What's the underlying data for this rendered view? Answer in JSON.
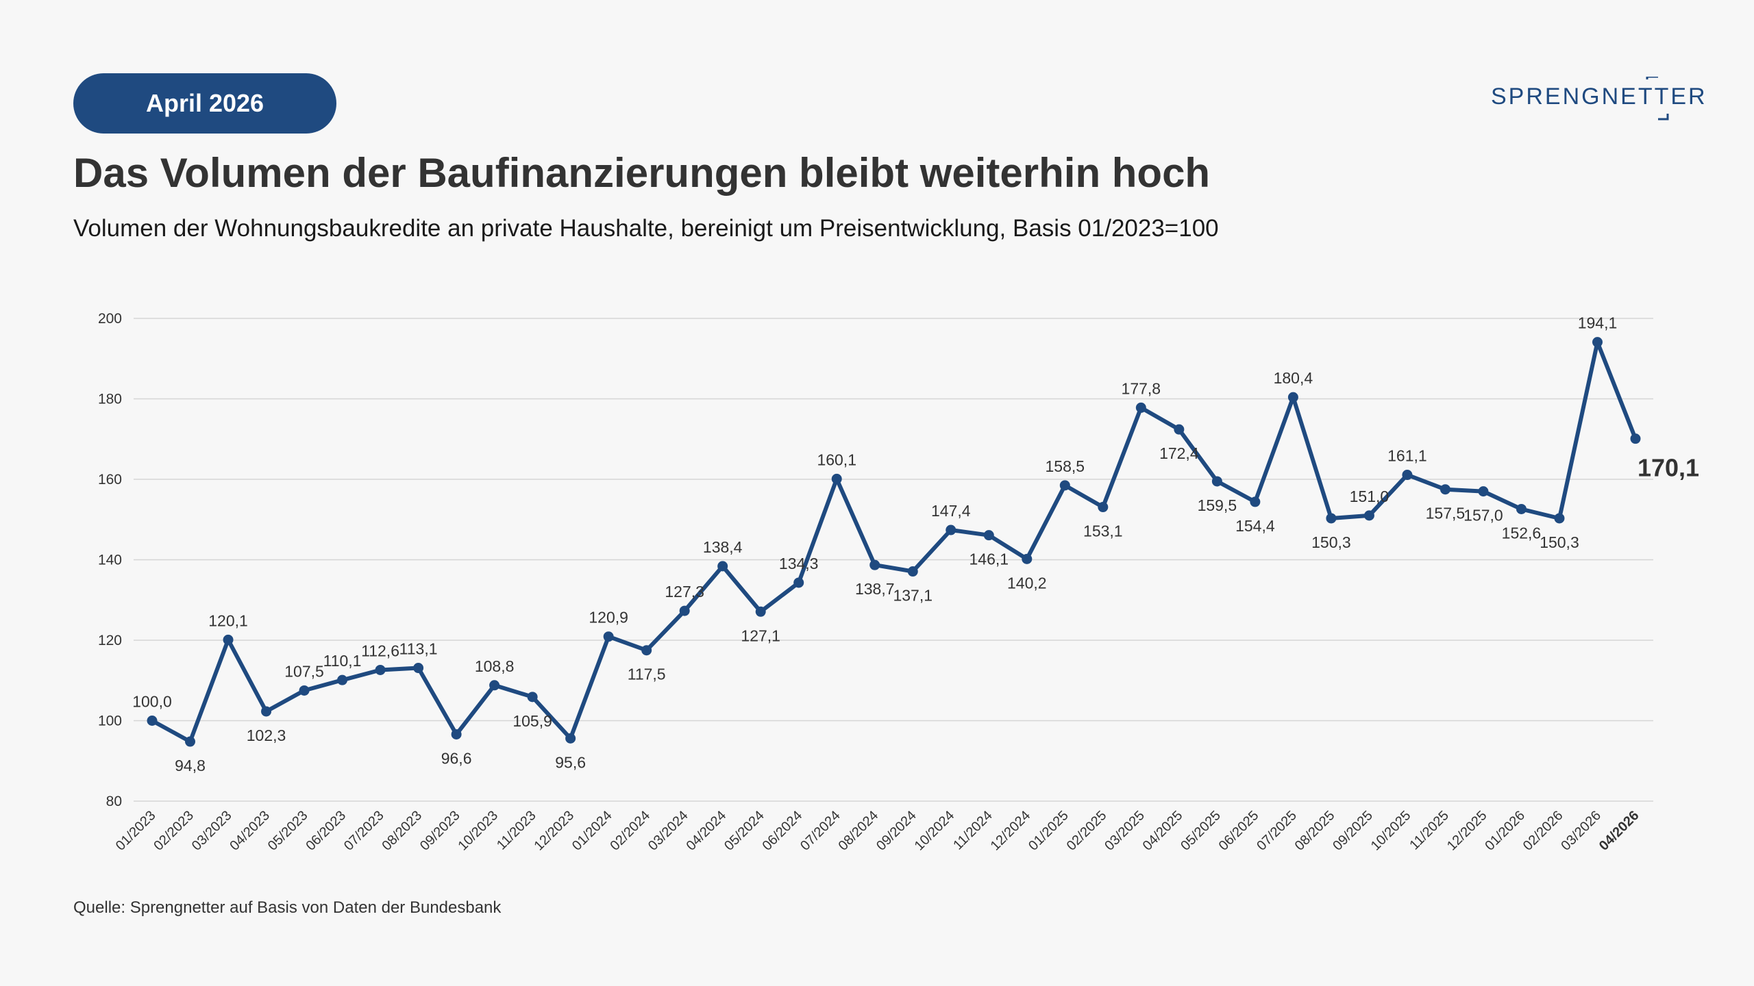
{
  "badge": "April 2026",
  "logo": "SPRENGNETTER",
  "title": "Das Volumen der Baufinanzierungen bleibt weiterhin hoch",
  "subtitle": "Volumen der Wohnungsbaukredite an private Haushalte, bereinigt um Preisentwicklung, Basis 01/2023=100",
  "source": "Quelle: Sprengnetter auf Basis von Daten der Bundesbank",
  "colors": {
    "brand": "#1f4a80",
    "background": "#f7f7f7",
    "grid": "#d6d6d6"
  },
  "chart_data": {
    "type": "line",
    "title": "",
    "xlabel": "",
    "ylabel": "",
    "ylim": [
      80,
      200
    ],
    "yticks": [
      80,
      100,
      120,
      140,
      160,
      180,
      200
    ],
    "grid": true,
    "legend": "none",
    "categories": [
      "01/2023",
      "02/2023",
      "03/2023",
      "04/2023",
      "05/2023",
      "06/2023",
      "07/2023",
      "08/2023",
      "09/2023",
      "10/2023",
      "11/2023",
      "12/2023",
      "01/2024",
      "02/2024",
      "03/2024",
      "04/2024",
      "05/2024",
      "06/2024",
      "07/2024",
      "08/2024",
      "09/2024",
      "10/2024",
      "11/2024",
      "12/2024",
      "01/2025",
      "02/2025",
      "03/2025",
      "04/2025",
      "05/2025",
      "06/2025",
      "07/2025",
      "08/2025",
      "09/2025",
      "10/2025",
      "11/2025",
      "12/2025",
      "01/2026",
      "02/2026",
      "03/2026",
      "04/2026"
    ],
    "series": [
      {
        "values": [
          100.0,
          94.8,
          120.1,
          102.3,
          107.5,
          110.1,
          112.6,
          113.1,
          96.6,
          108.8,
          105.9,
          95.6,
          120.9,
          117.5,
          127.3,
          138.4,
          127.1,
          134.3,
          160.1,
          138.7,
          137.1,
          147.4,
          146.1,
          140.2,
          158.5,
          153.1,
          177.8,
          172.4,
          159.5,
          154.4,
          180.4,
          150.3,
          151.0,
          161.1,
          157.5,
          157.0,
          152.6,
          150.3,
          194.1,
          170.1
        ],
        "labels": [
          "100,0",
          "94,8",
          "120,1",
          "102,3",
          "107,5",
          "110,1",
          "112,6",
          "113,1",
          "96,6",
          "108,8",
          "105,9",
          "95,6",
          "120,9",
          "117,5",
          "127,3",
          "138,4",
          "127,1",
          "134,3",
          "160,1",
          "138,7",
          "137,1",
          "147,4",
          "146,1",
          "140,2",
          "158,5",
          "153,1",
          "177,8",
          "172,4",
          "159,5",
          "154,4",
          "180,4",
          "150,3",
          "151,0",
          "161,1",
          "157,5",
          "157,0",
          "152,6",
          "150,3",
          "194,1",
          "170,1"
        ],
        "color": "#1f4a80"
      }
    ]
  }
}
